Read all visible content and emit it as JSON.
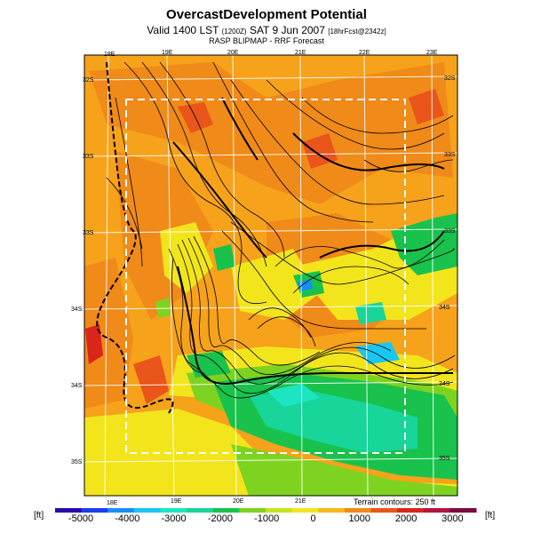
{
  "header": {
    "title": "OvercastDevelopment Potential",
    "line2_main": "Valid 1400 LST",
    "line2_small1": "(1200Z)",
    "line2_date": "SAT 9 Jun 2007",
    "line2_small2": "[18hrFcst@2342z]",
    "line3": "RASP BLIPMAP - RRF Forecast"
  },
  "map": {
    "top_lon_labels": [
      "18E",
      "19E",
      "20E",
      "21E",
      "22E",
      "23E"
    ],
    "bottom_lon_labels": [
      "18E",
      "19E",
      "20E",
      "21E"
    ],
    "left_lat_labels": [
      "32S",
      "33S",
      "33S",
      "34S",
      "34S",
      "35S"
    ],
    "right_lat_labels": [
      "32S",
      "33S",
      "33S",
      "34S",
      "34S",
      "35S"
    ],
    "terrain_note": "Terrain contours: 250 ft"
  },
  "colorbar": {
    "unit_left": "[ft]",
    "unit_right": "[ft]",
    "ticks": [
      "-5000",
      "-4000",
      "-3000",
      "-2000",
      "-1000",
      "0",
      "1000",
      "2000",
      "3000"
    ],
    "colors": [
      "#2a0aa8",
      "#1c3cf0",
      "#1b8cf5",
      "#19c7f2",
      "#1ce6c2",
      "#18d59a",
      "#19c24c",
      "#7ed321",
      "#c6e31b",
      "#f2e51c",
      "#f7b91a",
      "#f08a18",
      "#e9551a",
      "#d9251a",
      "#b01640",
      "#7a0a40"
    ]
  }
}
